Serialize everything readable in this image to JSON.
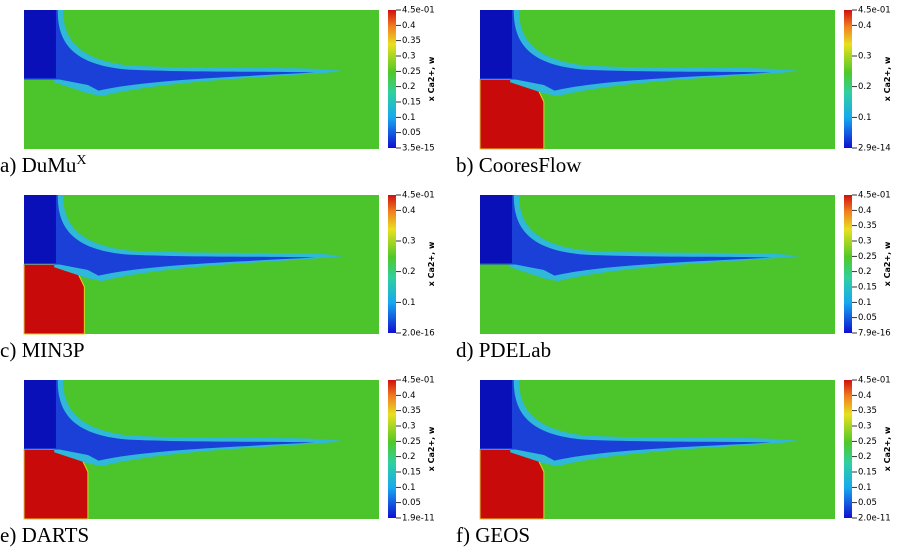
{
  "panels": [
    {
      "caption": "a) DuMu",
      "superscript": "X",
      "colorbar": {
        "label": "x Ca2+, w",
        "ticks": [
          {
            "value": 0.45,
            "label": "4.5e-01"
          },
          0.4,
          0.35,
          0.3,
          0.25,
          0.2,
          0.15,
          0.1,
          0.05,
          {
            "value": 3.5e-15,
            "label": "3.5e-15"
          }
        ]
      }
    },
    {
      "caption": "b) CooresFlow",
      "colorbar": {
        "label": "x Ca2+, w",
        "ticks": [
          {
            "value": 0.45,
            "label": "4.5e-01"
          },
          0.4,
          0.3,
          0.2,
          0.1,
          {
            "value": 2.9e-14,
            "label": "2.9e-14"
          }
        ]
      }
    },
    {
      "caption": "c) MIN3P",
      "colorbar": {
        "label": "x Ca2+, w",
        "ticks": [
          {
            "value": 0.45,
            "label": "4.5e-01"
          },
          0.4,
          0.3,
          0.2,
          0.1,
          {
            "value": 2e-16,
            "label": "2.0e-16"
          }
        ]
      }
    },
    {
      "caption": "d) PDELab",
      "colorbar": {
        "label": "x Ca2+, w",
        "ticks": [
          {
            "value": 0.45,
            "label": "4.5e-01"
          },
          0.4,
          0.35,
          0.3,
          0.25,
          0.2,
          0.15,
          0.1,
          0.05,
          {
            "value": 7.9e-16,
            "label": "7.9e-16"
          }
        ]
      }
    },
    {
      "caption": "e) DARTS",
      "colorbar": {
        "label": "x Ca2+, w",
        "ticks": [
          {
            "value": 0.45,
            "label": "4.5e-01"
          },
          0.4,
          0.35,
          0.3,
          0.25,
          0.2,
          0.15,
          0.1,
          0.05,
          {
            "value": 1.9e-11,
            "label": "1.9e-11"
          }
        ]
      }
    },
    {
      "caption": "f) GEOS",
      "colorbar": {
        "label": "x Ca2+, w",
        "ticks": [
          {
            "value": 0.45,
            "label": "4.5e-01"
          },
          0.4,
          0.35,
          0.3,
          0.25,
          0.2,
          0.15,
          0.1,
          0.05,
          {
            "value": 2e-11,
            "label": "2.0e-11"
          }
        ]
      }
    }
  ]
}
